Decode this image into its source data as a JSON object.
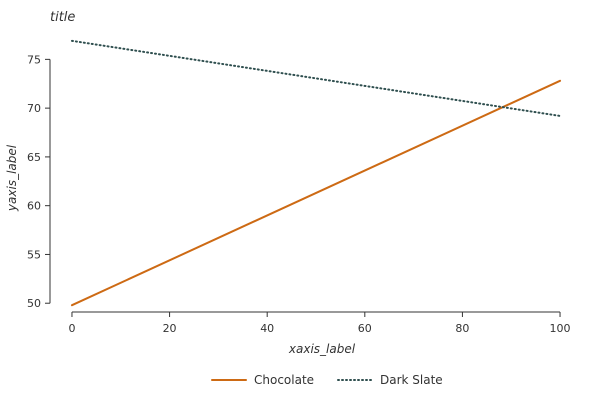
{
  "chart_data": {
    "type": "line",
    "title": "title",
    "xlabel": "xaxis_label",
    "ylabel": "yaxis_label",
    "xlim": [
      -4.5,
      104.5
    ],
    "ylim": [
      49.1,
      77.6
    ],
    "x_ticks": [
      0,
      20,
      40,
      60,
      80,
      100
    ],
    "y_ticks": [
      50,
      55,
      60,
      65,
      70,
      75
    ],
    "x": [
      0,
      100
    ],
    "series": [
      {
        "name": "Chocolate",
        "values": [
          49.8,
          72.8
        ],
        "color": "#cd6a14",
        "style": "solid"
      },
      {
        "name": "Dark Slate",
        "values": [
          76.9,
          69.2
        ],
        "color": "#2f4f4f",
        "style": "dotted"
      }
    ],
    "legend": {
      "position": "bottom",
      "items": [
        "Chocolate",
        "Dark Slate"
      ]
    },
    "grid": false
  }
}
